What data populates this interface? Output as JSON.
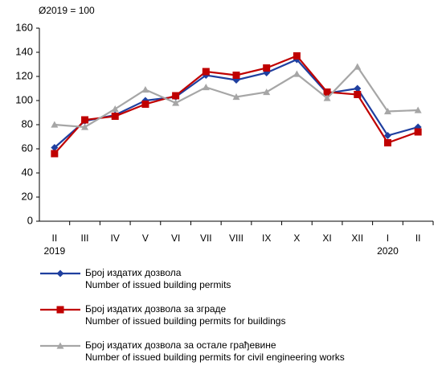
{
  "chart_data": {
    "type": "line",
    "subtitle": "Ø2019 = 100",
    "categories": [
      "II",
      "III",
      "IV",
      "V",
      "VI",
      "VII",
      "VIII",
      "IX",
      "X",
      "XI",
      "XII",
      "I",
      "II"
    ],
    "x_sublabels": [
      "2019",
      null,
      null,
      null,
      null,
      null,
      null,
      null,
      null,
      null,
      null,
      "2020",
      null
    ],
    "ylim": [
      0,
      160
    ],
    "yticks": [
      0,
      20,
      40,
      60,
      80,
      100,
      120,
      140,
      160
    ],
    "grid": false,
    "series": [
      {
        "name": [
          "Број издатих дозвола",
          "Number  of  issued building permits"
        ],
        "color": "#1f3f9f",
        "marker": "diamond",
        "values": [
          61,
          83,
          88,
          100,
          103,
          121,
          117,
          123,
          134,
          106,
          110,
          71,
          78
        ]
      },
      {
        "name": [
          "Број издатих дозвола за зграде",
          "Number  of  issued building permits for buildings"
        ],
        "color": "#c00000",
        "marker": "square",
        "values": [
          56,
          84,
          87,
          97,
          104,
          124,
          121,
          127,
          137,
          107,
          105,
          65,
          74
        ]
      },
      {
        "name": [
          "Број издатих дозвола за остале грађевине",
          "Number  of  issued building permits for civil engineering works"
        ],
        "color": "#a6a6a6",
        "marker": "triangle",
        "values": [
          80,
          78,
          93,
          109,
          98,
          111,
          103,
          107,
          122,
          102,
          128,
          91,
          92
        ]
      }
    ]
  }
}
